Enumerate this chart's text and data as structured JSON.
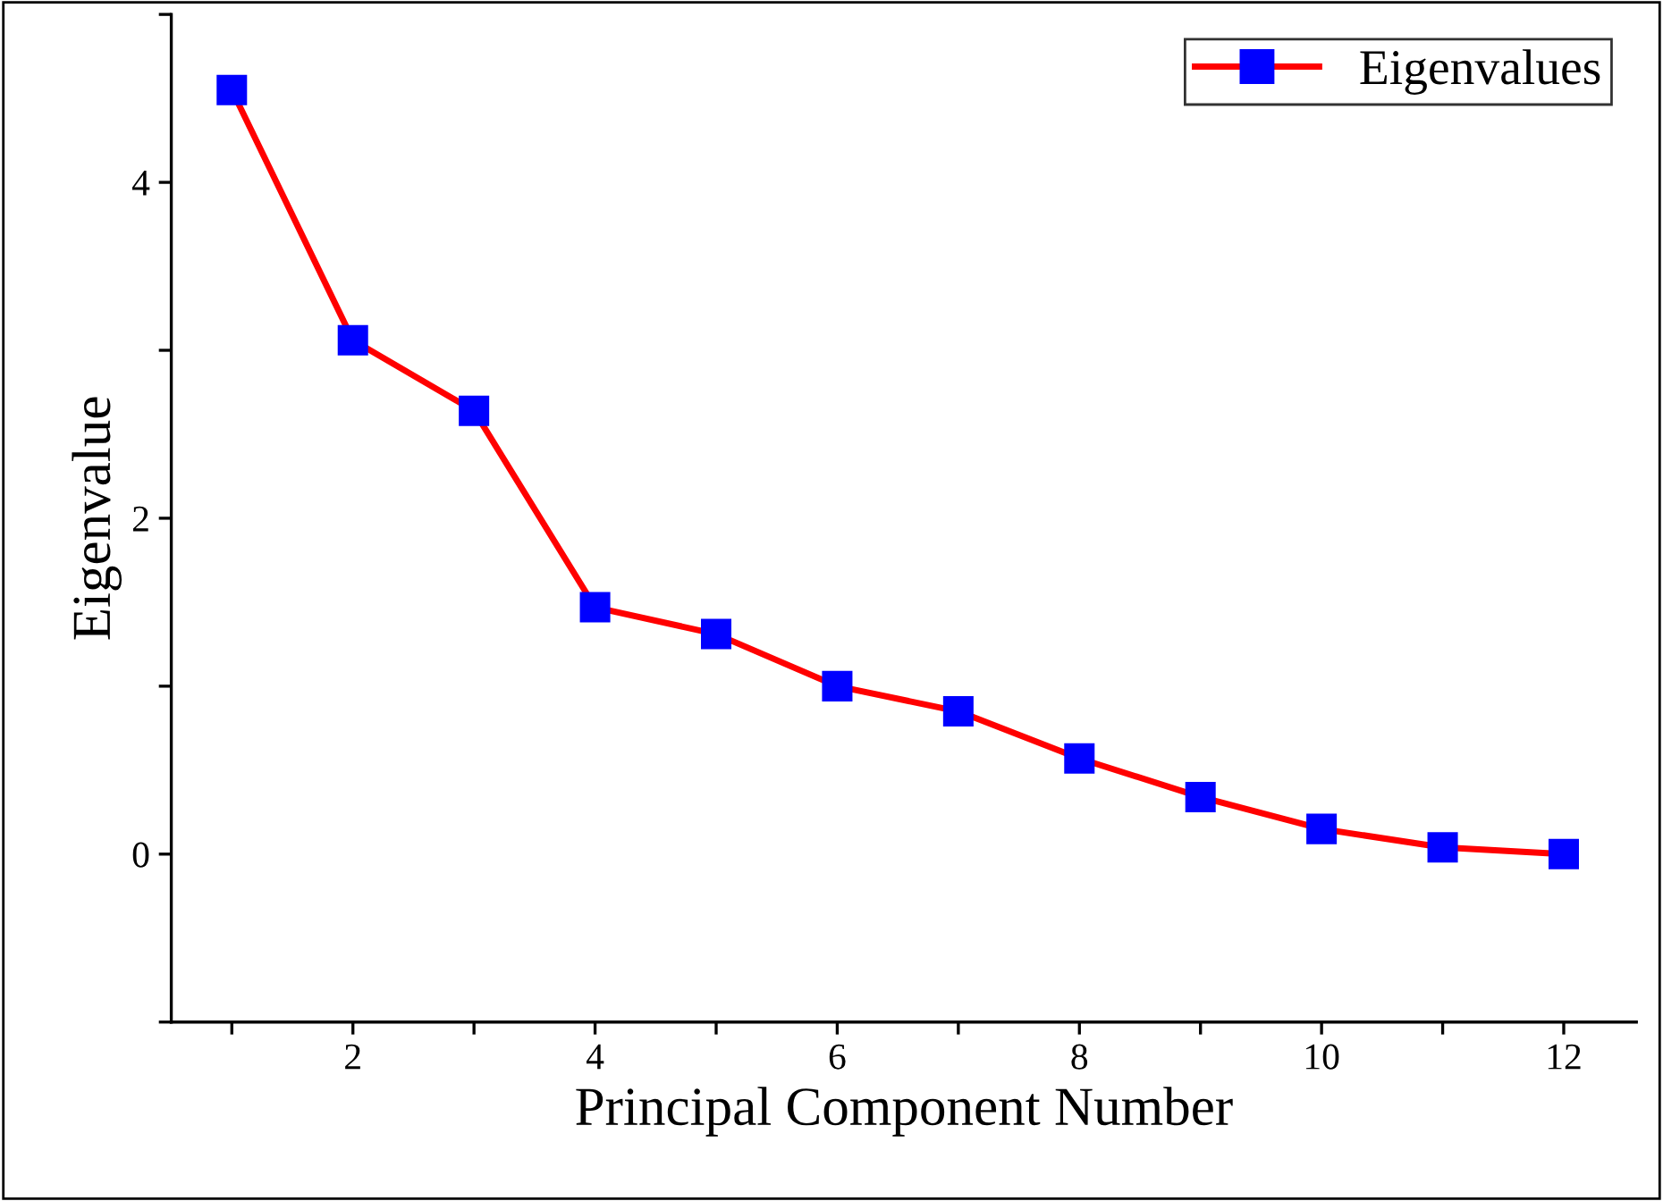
{
  "chart_data": {
    "type": "line",
    "xlabel": "Principal Component Number",
    "ylabel": "Eigenvalue",
    "x": [
      1,
      2,
      3,
      4,
      5,
      6,
      7,
      8,
      9,
      10,
      11,
      12
    ],
    "series": [
      {
        "name": "Eigenvalues",
        "color": "#ff0000",
        "colors": [
          "#0000ff",
          "#0000ff",
          "#0000ff",
          "#0000ff",
          "#0000ff",
          "#0000ff",
          "#0000ff",
          "#0000ff",
          "#0000ff",
          "#0000ff",
          "#0000ff",
          "#0000ff"
        ],
        "values": [
          4.55,
          3.06,
          2.64,
          1.47,
          1.31,
          1.0,
          0.85,
          0.57,
          0.34,
          0.15,
          0.04,
          0.0
        ]
      }
    ],
    "xlim": [
      0.5,
      12.6
    ],
    "ylim": [
      -1,
      5
    ],
    "xticks": [
      {
        "value": 1,
        "label": null
      },
      2,
      {
        "value": 3,
        "label": null
      },
      4,
      {
        "value": 5,
        "label": null
      },
      6,
      {
        "value": 7,
        "label": null
      },
      8,
      {
        "value": 9,
        "label": null
      },
      10,
      {
        "value": 11,
        "label": null
      },
      12
    ],
    "yticks": [
      {
        "value": -1,
        "label": null
      },
      0,
      {
        "value": 1,
        "label": null
      },
      2,
      {
        "value": 3,
        "label": null
      },
      4,
      {
        "value": 5,
        "label": null
      }
    ],
    "marker": "square",
    "line_style": "solid",
    "legend": "top right",
    "grid": false
  }
}
